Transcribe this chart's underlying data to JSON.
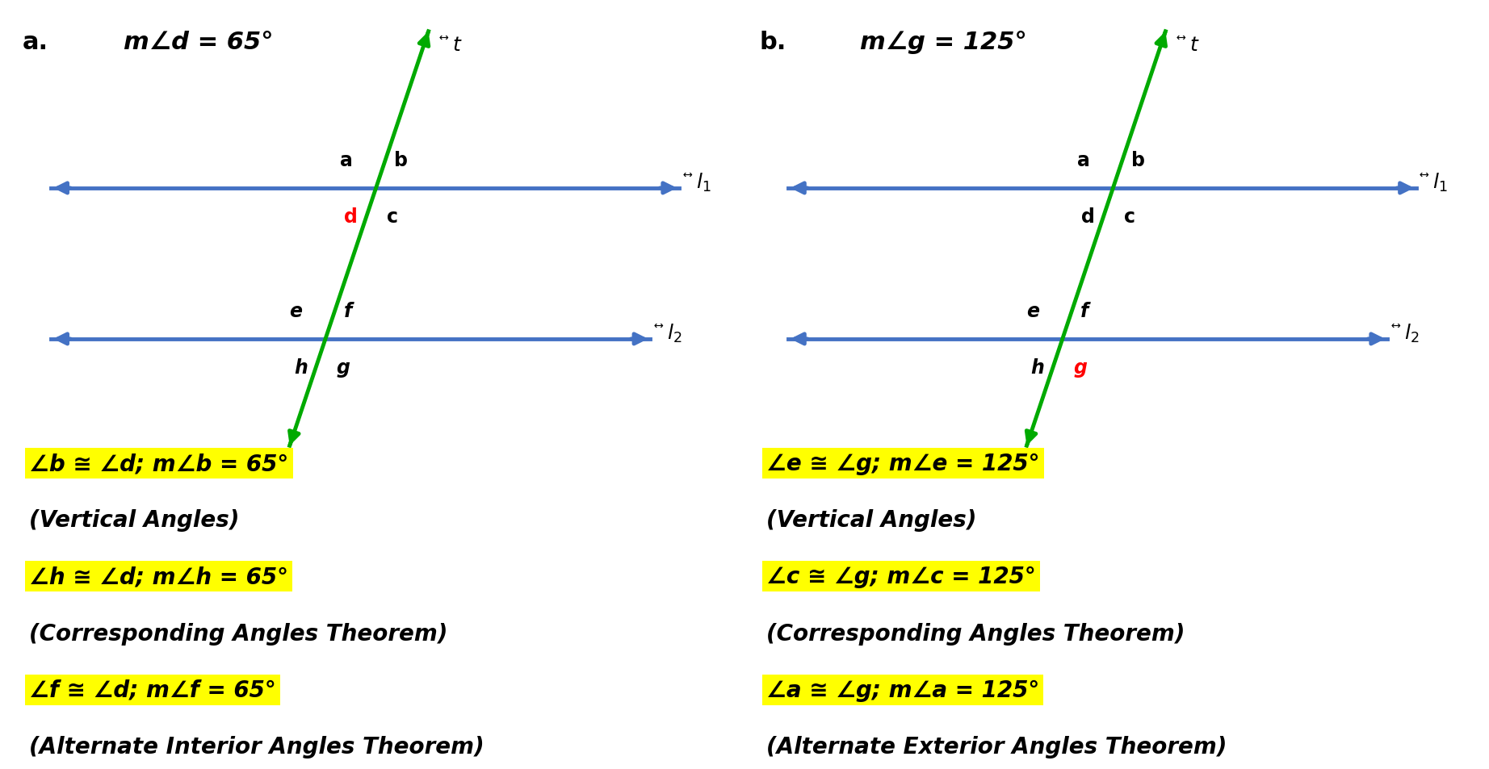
{
  "bg_color": "#ffffff",
  "left_panel": {
    "title_a": "a.",
    "title_eq": "m∠d = 65°",
    "highlight_color": "#ffff00",
    "special_label": "d",
    "special_color": "#ff0000",
    "text_lines": [
      {
        "text": "∠b ≅ ∠d; m∠b = 65°",
        "highlight": true
      },
      {
        "text": "(Vertical Angles)",
        "highlight": false
      },
      {
        "text": "∠h ≅ ∠d; m∠h = 65°",
        "highlight": true
      },
      {
        "text": "(Corresponding Angles Theorem)",
        "highlight": false
      },
      {
        "text": "∠f ≅ ∠d; m∠f = 65°",
        "highlight": true
      },
      {
        "text": "(Alternate Interior Angles Theorem)",
        "highlight": false
      }
    ]
  },
  "right_panel": {
    "title_a": "b.",
    "title_eq": "m∠g = 125°",
    "highlight_color": "#ffff00",
    "special_label": "g",
    "special_color": "#ff0000",
    "text_lines": [
      {
        "text": "∠e ≅ ∠g; m∠e = 125°",
        "highlight": true
      },
      {
        "text": "(Vertical Angles)",
        "highlight": false
      },
      {
        "text": "∠c ≅ ∠g; m∠c = 125°",
        "highlight": true
      },
      {
        "text": "(Corresponding Angles Theorem)",
        "highlight": false
      },
      {
        "text": "∠a ≅ ∠g; m∠a = 125°",
        "highlight": true
      },
      {
        "text": "(Alternate Exterior Angles Theorem)",
        "highlight": false
      }
    ]
  },
  "line_color": "#4472c4",
  "transversal_color": "#00aa00",
  "label_fontsize": 17,
  "title_fontsize": 22,
  "text_fontsize": 20
}
